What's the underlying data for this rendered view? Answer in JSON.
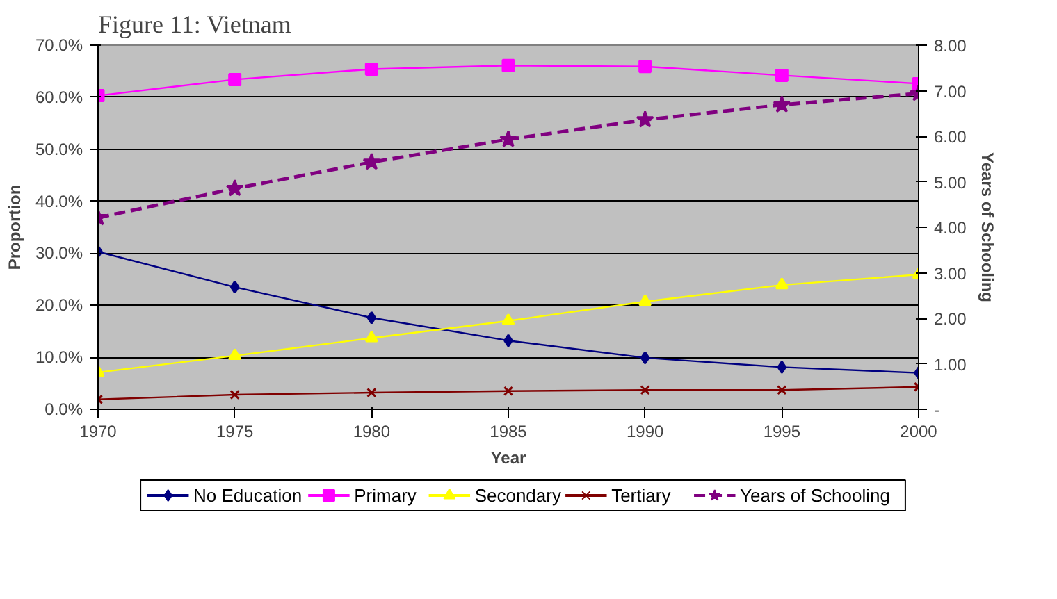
{
  "chart_data": {
    "type": "line",
    "title": "Figure 11: Vietnam",
    "xlabel": "Year",
    "ylabel": "Proportion",
    "y2label": "Years of Schooling",
    "x": [
      1970,
      1975,
      1980,
      1985,
      1990,
      1995,
      2000
    ],
    "xlim": [
      1970,
      2000
    ],
    "xticks": [
      1970,
      1975,
      1980,
      1985,
      1990,
      1995,
      2000
    ],
    "ylim": [
      0,
      70
    ],
    "yticks": [
      {
        "value": 0,
        "label": "0.0%"
      },
      {
        "value": 10,
        "label": "10.0%"
      },
      {
        "value": 20,
        "label": "20.0%"
      },
      {
        "value": 30,
        "label": "30.0%"
      },
      {
        "value": 40,
        "label": "40.0%"
      },
      {
        "value": 50,
        "label": "50.0%"
      },
      {
        "value": 60,
        "label": "60.0%"
      },
      {
        "value": 70,
        "label": "70.0%"
      }
    ],
    "y2lim": [
      0,
      8
    ],
    "y2ticks": [
      {
        "value": 0,
        "label": "-"
      },
      {
        "value": 1,
        "label": "1.00"
      },
      {
        "value": 2,
        "label": "2.00"
      },
      {
        "value": 3,
        "label": "3.00"
      },
      {
        "value": 4,
        "label": "4.00"
      },
      {
        "value": 5,
        "label": "5.00"
      },
      {
        "value": 6,
        "label": "6.00"
      },
      {
        "value": 7,
        "label": "7.00"
      },
      {
        "value": 8,
        "label": "8.00"
      }
    ],
    "grid": "y",
    "legend": "bottom",
    "series": [
      {
        "name": "No Education",
        "color": "#000080",
        "marker": "diamond",
        "line_style": "solid",
        "values": [
          30.3,
          23.5,
          17.6,
          13.2,
          9.9,
          8.1,
          7.0
        ]
      },
      {
        "name": "Primary",
        "color": "#ff00ff",
        "marker": "square",
        "line_style": "solid",
        "values": [
          60.3,
          63.4,
          65.4,
          66.1,
          65.9,
          64.2,
          62.6
        ]
      },
      {
        "name": "Secondary",
        "color": "#ffff00",
        "marker": "triangle",
        "line_style": "solid",
        "values": [
          7.1,
          10.3,
          13.7,
          17.0,
          20.7,
          23.9,
          25.9
        ]
      },
      {
        "name": "Tertiary",
        "color": "#800000",
        "marker": "cross",
        "line_style": "solid",
        "values": [
          1.9,
          2.8,
          3.2,
          3.5,
          3.7,
          3.7,
          4.3
        ]
      },
      {
        "name": "Years of Schooling",
        "color": "#800080",
        "marker": "star",
        "line_style": "dashed",
        "axis": "y2",
        "values": [
          4.21,
          4.85,
          5.43,
          5.93,
          6.36,
          6.69,
          6.94
        ]
      }
    ]
  }
}
